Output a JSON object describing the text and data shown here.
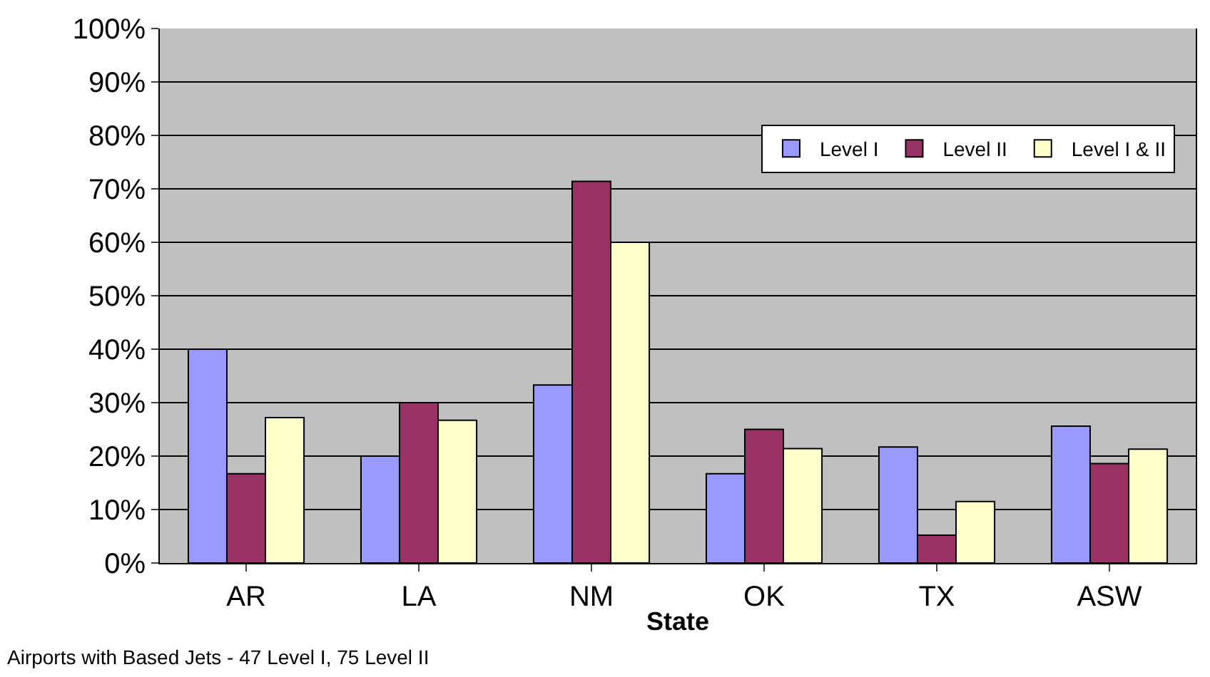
{
  "chart_data": {
    "type": "bar",
    "xlabel": "State",
    "categories": [
      "AR",
      "LA",
      "NM",
      "OK",
      "TX",
      "ASW"
    ],
    "series": [
      {
        "name": "Level I",
        "color": "#9999ff",
        "values": [
          40,
          20,
          33.3,
          16.7,
          21.7,
          25.6
        ]
      },
      {
        "name": "Level II",
        "color": "#993366",
        "values": [
          16.7,
          30,
          71.4,
          25,
          5.2,
          18.6
        ]
      },
      {
        "name": "Level I & II",
        "color": "#ffffcc",
        "values": [
          27.2,
          26.7,
          60,
          21.4,
          11.5,
          21.3
        ]
      }
    ],
    "ylim": [
      0,
      100
    ],
    "yticks": [
      {
        "value": 0,
        "label": "0%"
      },
      {
        "value": 10,
        "label": "10%"
      },
      {
        "value": 20,
        "label": "20%"
      },
      {
        "value": 30,
        "label": "30%"
      },
      {
        "value": 40,
        "label": "40%"
      },
      {
        "value": 50,
        "label": "50%"
      },
      {
        "value": 60,
        "label": "60%"
      },
      {
        "value": 70,
        "label": "70%"
      },
      {
        "value": 80,
        "label": "80%"
      },
      {
        "value": 90,
        "label": "90%"
      },
      {
        "value": 100,
        "label": "100%"
      }
    ],
    "grid": "y",
    "legend": "top right",
    "annotations": [
      "Airports with Based Jets - 47 Level I, 75 Level II"
    ]
  }
}
